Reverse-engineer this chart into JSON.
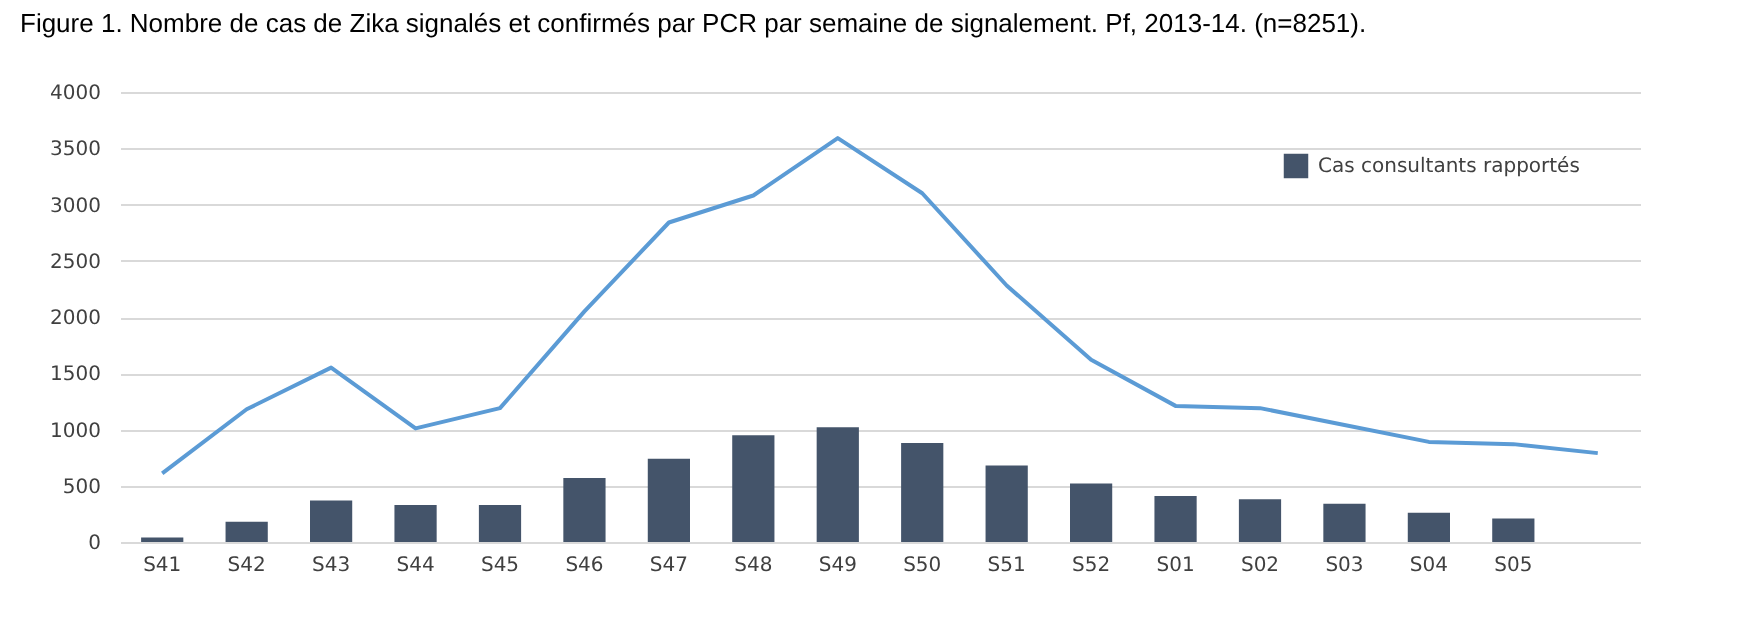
{
  "chart_data": {
    "type": "bar",
    "title": "Figure 1. Nombre de cas de Zika signalés et confirmés par PCR par semaine de signalement. Pf, 2013-14. (n=8251).",
    "categories": [
      "S41",
      "S42",
      "S43",
      "S44",
      "S45",
      "S46",
      "S47",
      "S48",
      "S49",
      "S50",
      "S51",
      "S52",
      "S01",
      "S02",
      "S03",
      "S04",
      "S05",
      null
    ],
    "series": [
      {
        "name": "Cas consultants rapportés",
        "color": "#44546a",
        "values": [
          40,
          180,
          370,
          330,
          330,
          570,
          740,
          950,
          1020,
          880,
          680,
          520,
          410,
          380,
          340,
          260,
          210,
          null
        ]
      },
      {
        "type": "line",
        "color": "#5b9bd5",
        "values": [
          610,
          1180,
          1550,
          1010,
          1190,
          2050,
          2840,
          3080,
          3590,
          3100,
          2280,
          1620,
          1210,
          1190,
          1040,
          890,
          870,
          790
        ]
      }
    ],
    "ylim": [
      0,
      4000
    ],
    "yticks": [
      0,
      500,
      1000,
      1500,
      2000,
      2500,
      3000,
      3500,
      4000
    ],
    "grid": "y",
    "legend": "top right"
  }
}
